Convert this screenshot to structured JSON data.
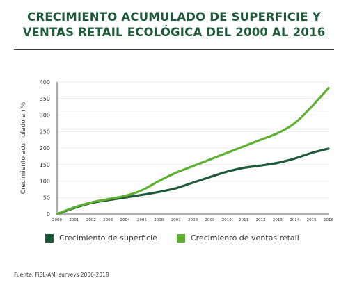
{
  "header": {
    "title_line1": "CRECIMIENTO ACUMULADO DE SUPERFICIE Y",
    "title_line2": "VENTAS RETAIL ECOLÓGICA DEL 2000 AL 2016"
  },
  "source": "Fuente: FiBL-AMI surveys 2006-2018",
  "colors": {
    "superficie": "#1e5a3a",
    "ventas": "#5db030",
    "title": "#1e5a3a"
  },
  "chart_data": {
    "type": "line",
    "title": "CRECIMIENTO ACUMULADO DE SUPERFICIE Y VENTAS RETAIL ECOLÓGICA DEL 2000 AL 2016",
    "xlabel": "",
    "ylabel": "Crecimiento acumulado en %",
    "x": [
      "2000",
      "2001",
      "2002",
      "2003",
      "2004",
      "2005",
      "2006",
      "2007",
      "2008",
      "2009",
      "2010",
      "2011",
      "2012",
      "2013",
      "2014",
      "2015",
      "2016"
    ],
    "ylim": [
      0,
      400
    ],
    "yticks": [
      0,
      50,
      100,
      150,
      200,
      250,
      300,
      350,
      400
    ],
    "grid": "horizontal",
    "legend_position": "bottom",
    "series": [
      {
        "name": "Crecimiento de superficie",
        "color": "#1e5a3a",
        "values": [
          0,
          18,
          33,
          42,
          50,
          58,
          67,
          78,
          95,
          112,
          128,
          140,
          147,
          155,
          168,
          185,
          198
        ]
      },
      {
        "name": "Crecimiento de ventas retail",
        "color": "#5db030",
        "values": [
          0,
          20,
          35,
          45,
          55,
          72,
          100,
          125,
          145,
          165,
          185,
          205,
          225,
          245,
          275,
          325,
          382
        ]
      }
    ]
  }
}
